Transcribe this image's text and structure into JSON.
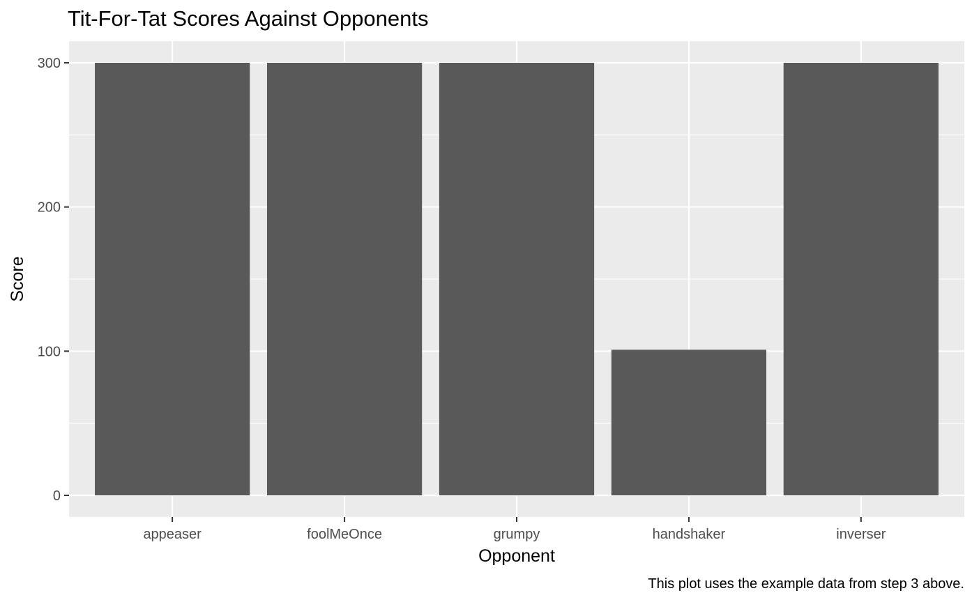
{
  "chart_data": {
    "type": "bar",
    "title": "Tit-For-Tat Scores Against Opponents",
    "caption": "This plot uses the example data from step 3 above.",
    "xlabel": "Opponent",
    "ylabel": "Score",
    "categories": [
      "appeaser",
      "foolMeOnce",
      "grumpy",
      "handshaker",
      "inverser"
    ],
    "values": [
      300,
      300,
      300,
      101,
      300
    ],
    "ylim": [
      -15,
      315
    ],
    "yticks": [
      0,
      100,
      200,
      300
    ],
    "grid": true,
    "legend": "none",
    "colors": {
      "bar": "#595959",
      "panel": "#ebebeb",
      "grid": "#ffffff",
      "tick_label": "#4d4d4d",
      "tick_mark": "#333333"
    }
  }
}
